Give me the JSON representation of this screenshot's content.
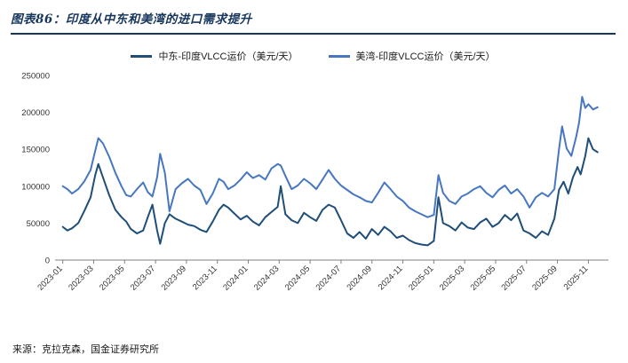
{
  "header": {
    "title": "图表86：印度从中东和美湾的进口需求提升"
  },
  "footer": {
    "source": "来源：克拉克森，国金证券研究所"
  },
  "chart_data": {
    "type": "line",
    "title": "印度从中东和美湾的进口需求提升",
    "xlabel": "",
    "ylabel": "VLCC运价（美元/天）",
    "ylim": [
      0,
      250000
    ],
    "yticks": [
      0,
      50000,
      100000,
      150000,
      200000,
      250000
    ],
    "grid": false,
    "legend_position": "top",
    "x_range": [
      -0.5,
      35.3
    ],
    "xticks": [
      {
        "x": 0,
        "label": "2023-01"
      },
      {
        "x": 2,
        "label": "2023-03"
      },
      {
        "x": 4,
        "label": "2023-05"
      },
      {
        "x": 6,
        "label": "2023-07"
      },
      {
        "x": 8,
        "label": "2023-09"
      },
      {
        "x": 10,
        "label": "2023-11"
      },
      {
        "x": 12,
        "label": "2024-01"
      },
      {
        "x": 14,
        "label": "2024-03"
      },
      {
        "x": 16,
        "label": "2024-05"
      },
      {
        "x": 18,
        "label": "2024-07"
      },
      {
        "x": 20,
        "label": "2024-09"
      },
      {
        "x": 22,
        "label": "2024-11"
      },
      {
        "x": 24,
        "label": "2025-01"
      },
      {
        "x": 26,
        "label": "2025-03"
      },
      {
        "x": 28,
        "label": "2025-05"
      },
      {
        "x": 30,
        "label": "2025-07"
      },
      {
        "x": 32,
        "label": "2025-09"
      },
      {
        "x": 34,
        "label": "2025-11"
      }
    ],
    "series": [
      {
        "name": "中东-印度VLCC运价（美元/天）",
        "color": "#1F4E79",
        "x": [
          0.0,
          0.3,
          0.6,
          1.0,
          1.4,
          1.8,
          2.1,
          2.3,
          2.6,
          3.0,
          3.4,
          3.8,
          4.1,
          4.4,
          4.8,
          5.2,
          5.5,
          5.8,
          6.1,
          6.3,
          6.6,
          6.9,
          7.3,
          7.7,
          8.1,
          8.5,
          8.9,
          9.3,
          9.7,
          10.1,
          10.4,
          10.7,
          11.1,
          11.5,
          11.9,
          12.3,
          12.7,
          13.1,
          13.5,
          13.9,
          14.1,
          14.4,
          14.8,
          15.2,
          15.6,
          16.0,
          16.4,
          16.8,
          17.2,
          17.6,
          18.0,
          18.4,
          18.8,
          19.2,
          19.6,
          20.0,
          20.4,
          20.8,
          21.2,
          21.6,
          22.0,
          22.4,
          22.8,
          23.2,
          23.6,
          24.0,
          24.3,
          24.6,
          25.0,
          25.4,
          25.8,
          26.2,
          26.6,
          27.0,
          27.4,
          27.8,
          28.2,
          28.6,
          29.0,
          29.4,
          29.8,
          30.2,
          30.6,
          31.0,
          31.4,
          31.8,
          32.1,
          32.4,
          32.7,
          33.0,
          33.3,
          33.5,
          33.8,
          34.0,
          34.3,
          34.6
        ],
        "values": [
          45000,
          40000,
          43000,
          50000,
          67000,
          85000,
          115000,
          130000,
          112000,
          88000,
          68000,
          58000,
          52000,
          42000,
          36000,
          40000,
          58000,
          75000,
          40000,
          22000,
          50000,
          62000,
          56000,
          52000,
          48000,
          46000,
          41000,
          38000,
          52000,
          68000,
          75000,
          71000,
          63000,
          55000,
          60000,
          52000,
          47000,
          58000,
          65000,
          72000,
          100000,
          62000,
          54000,
          50000,
          64000,
          58000,
          53000,
          68000,
          75000,
          71000,
          54000,
          36000,
          30000,
          38000,
          29000,
          42000,
          34000,
          45000,
          39000,
          30000,
          33000,
          27000,
          23000,
          21000,
          20000,
          26000,
          85000,
          50000,
          46000,
          40000,
          51000,
          44000,
          42000,
          51000,
          56000,
          45000,
          50000,
          61000,
          54000,
          63000,
          40000,
          36000,
          30000,
          39000,
          34000,
          56000,
          95000,
          106000,
          90000,
          112000,
          126000,
          116000,
          141000,
          165000,
          150000,
          146000
        ]
      },
      {
        "name": "美湾-印度VLCC运价（美元/天）",
        "color": "#4777C0",
        "x": [
          0.0,
          0.3,
          0.6,
          1.0,
          1.4,
          1.8,
          2.1,
          2.3,
          2.6,
          3.0,
          3.4,
          3.8,
          4.1,
          4.4,
          4.8,
          5.2,
          5.5,
          5.8,
          6.1,
          6.3,
          6.6,
          6.9,
          7.3,
          7.7,
          8.1,
          8.5,
          8.9,
          9.3,
          9.7,
          10.1,
          10.4,
          10.7,
          11.1,
          11.5,
          11.9,
          12.3,
          12.7,
          13.1,
          13.5,
          13.9,
          14.1,
          14.4,
          14.8,
          15.2,
          15.6,
          16.0,
          16.4,
          16.8,
          17.2,
          17.6,
          18.0,
          18.4,
          18.8,
          19.2,
          19.6,
          20.0,
          20.4,
          20.8,
          21.2,
          21.6,
          22.0,
          22.4,
          22.8,
          23.2,
          23.6,
          24.0,
          24.3,
          24.6,
          25.0,
          25.4,
          25.8,
          26.2,
          26.6,
          27.0,
          27.4,
          27.8,
          28.2,
          28.6,
          29.0,
          29.4,
          29.8,
          30.2,
          30.6,
          31.0,
          31.4,
          31.8,
          32.1,
          32.3,
          32.6,
          32.9,
          33.2,
          33.4,
          33.6,
          33.8,
          34.0,
          34.3,
          34.6
        ],
        "values": [
          100000,
          96000,
          90000,
          96000,
          107000,
          122000,
          148000,
          165000,
          158000,
          140000,
          118000,
          100000,
          88000,
          86000,
          96000,
          105000,
          92000,
          86000,
          112000,
          144000,
          118000,
          66000,
          96000,
          104000,
          110000,
          101000,
          95000,
          76000,
          90000,
          110000,
          106000,
          96000,
          101000,
          109000,
          119000,
          111000,
          115000,
          109000,
          124000,
          130000,
          128000,
          114000,
          96000,
          101000,
          110000,
          104000,
          96000,
          109000,
          122000,
          110000,
          101000,
          95000,
          89000,
          85000,
          80000,
          78000,
          91000,
          105000,
          96000,
          86000,
          80000,
          71000,
          66000,
          62000,
          58000,
          61000,
          115000,
          91000,
          80000,
          76000,
          86000,
          90000,
          96000,
          100000,
          91000,
          85000,
          95000,
          101000,
          90000,
          96000,
          86000,
          71000,
          85000,
          91000,
          86000,
          96000,
          150000,
          181000,
          151000,
          141000,
          166000,
          186000,
          221000,
          206000,
          211000,
          204000,
          207000
        ]
      }
    ]
  }
}
